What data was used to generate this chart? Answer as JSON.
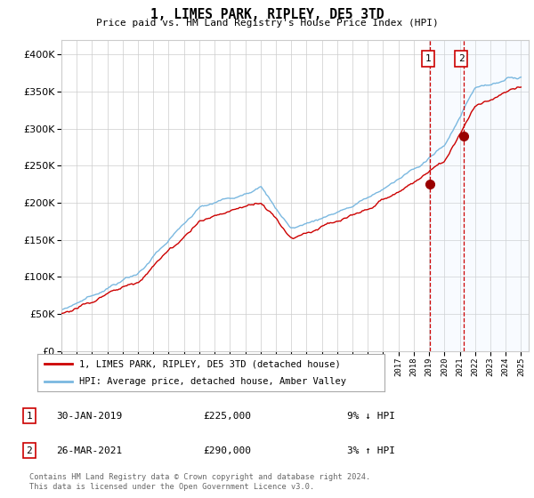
{
  "title": "1, LIMES PARK, RIPLEY, DE5 3TD",
  "subtitle": "Price paid vs. HM Land Registry's House Price Index (HPI)",
  "legend_line1": "1, LIMES PARK, RIPLEY, DE5 3TD (detached house)",
  "legend_line2": "HPI: Average price, detached house, Amber Valley",
  "transaction1_date": "30-JAN-2019",
  "transaction1_price": "£225,000",
  "transaction1_hpi": "9% ↓ HPI",
  "transaction2_date": "26-MAR-2021",
  "transaction2_price": "£290,000",
  "transaction2_hpi": "3% ↑ HPI",
  "footnote": "Contains HM Land Registry data © Crown copyright and database right 2024.\nThis data is licensed under the Open Government Licence v3.0.",
  "hpi_color": "#7ab8e0",
  "price_color": "#cc0000",
  "vline_color": "#cc0000",
  "highlight_color": "#ddeeff",
  "ylim": [
    0,
    420000
  ],
  "yticks": [
    0,
    50000,
    100000,
    150000,
    200000,
    250000,
    300000,
    350000,
    400000
  ],
  "x_start_year": 1995,
  "x_end_year": 2025,
  "transaction1_year": 2019.08,
  "transaction2_year": 2021.24,
  "t1_price": 225000,
  "t2_price": 290000
}
